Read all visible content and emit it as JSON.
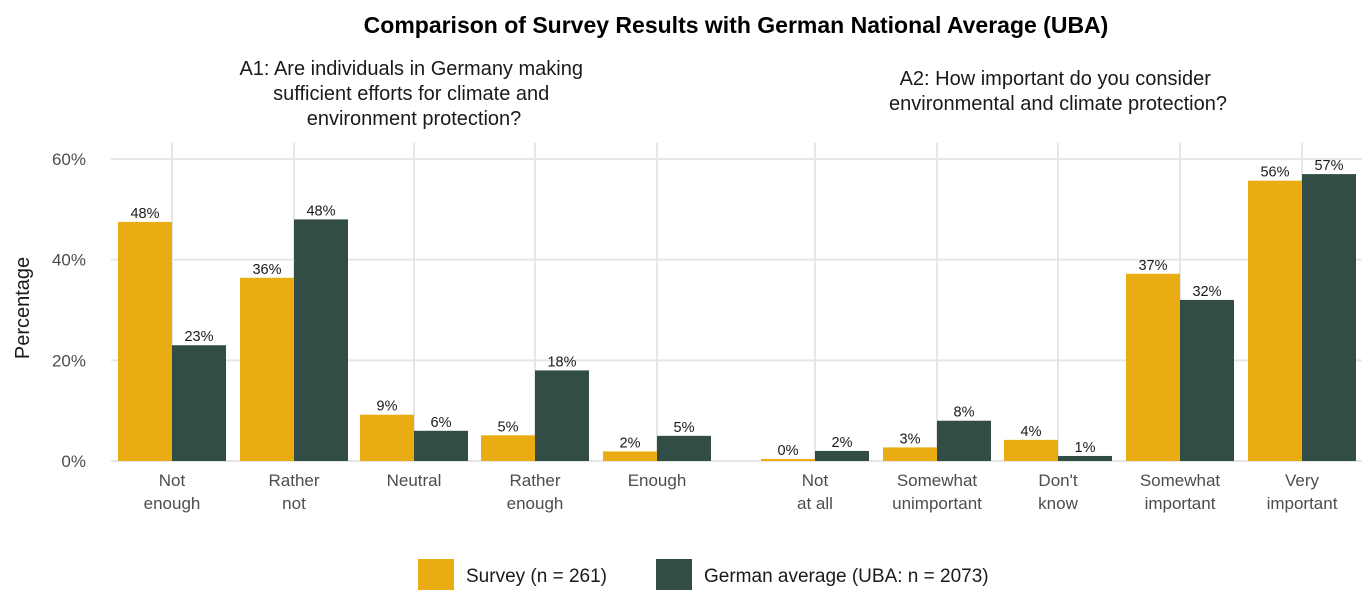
{
  "chart_data": {
    "type": "bar",
    "title": "Comparison of Survey Results with German National Average (UBA)",
    "ylabel": "Percentage",
    "ylim": [
      0,
      60
    ],
    "yticks": [
      "0%",
      "20%",
      "40%",
      "60%"
    ],
    "legend_position": "bottom",
    "series_names": [
      "Survey (n = 261)",
      "German average (UBA: n = 2073)"
    ],
    "colors": [
      "#EAAC13",
      "#324D45"
    ],
    "panels": [
      {
        "subtitle": "A1: Are individuals in Germany making sufficient efforts for climate and environment protection?",
        "categories": [
          "Not enough",
          "Rather not",
          "Neutral",
          "Rather enough",
          "Enough"
        ],
        "series": [
          {
            "name": "Survey (n = 261)",
            "values": [
              47.5,
              36.4,
              9.2,
              5.1,
              1.9
            ],
            "labels": [
              "48%",
              "36%",
              "9%",
              "5%",
              "2%"
            ]
          },
          {
            "name": "German average (UBA: n = 2073)",
            "values": [
              23,
              48,
              6,
              18,
              5
            ],
            "labels": [
              "23%",
              "48%",
              "6%",
              "18%",
              "5%"
            ]
          }
        ]
      },
      {
        "subtitle": "A2: How important do you consider environmental and climate protection?",
        "categories": [
          "Not at all",
          "Somewhat unimportant",
          "Don't know",
          "Somewhat important",
          "Very important"
        ],
        "series": [
          {
            "name": "Survey (n = 261)",
            "values": [
              0.4,
              2.7,
              4.2,
              37.2,
              55.7
            ],
            "labels": [
              "0%",
              "3%",
              "4%",
              "37%",
              "56%"
            ]
          },
          {
            "name": "German average (UBA: n = 2073)",
            "values": [
              2,
              8,
              1,
              32,
              57
            ],
            "labels": [
              "2%",
              "8%",
              "1%",
              "32%",
              "57%"
            ]
          }
        ]
      }
    ]
  }
}
